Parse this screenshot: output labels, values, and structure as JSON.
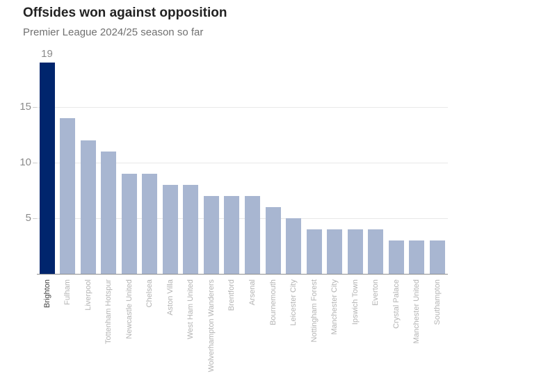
{
  "header": {
    "title": "Offsides won against opposition",
    "subtitle": "Premier League 2024/25 season so far"
  },
  "chart_data": {
    "type": "bar",
    "title": "Offsides won against opposition",
    "subtitle": "Premier League 2024/25 season so far",
    "categories": [
      "Brighton",
      "Fulham",
      "Liverpool",
      "Tottenham Hotspur",
      "Newcastle United",
      "Chelsea",
      "Aston Villa",
      "West Ham United",
      "Wolverhampton Wanderers",
      "Brentford",
      "Arsenal",
      "Bournemouth",
      "Leicester City",
      "Nottingham Forest",
      "Manchester City",
      "Ipswich Town",
      "Everton",
      "Crystal Palace",
      "Manchester United",
      "Southampton"
    ],
    "values": [
      19,
      14,
      12,
      11,
      9,
      9,
      8,
      8,
      7,
      7,
      7,
      6,
      5,
      4,
      4,
      4,
      4,
      3,
      3,
      3
    ],
    "highlight_index": 0,
    "annotations": [
      {
        "index": 0,
        "text": "19"
      }
    ],
    "y_ticks": [
      5,
      10,
      15
    ],
    "ylim": [
      0,
      20
    ],
    "grid": true,
    "legend": false,
    "xlabel": "",
    "ylabel": "",
    "colors": {
      "highlight_bar": "#00256d",
      "bar": "#a8b6d1",
      "gridline": "#e8e8e8",
      "axis_line": "#8e8e8e",
      "tick_mark": "#cccccc",
      "y_tick_label": "#8a8a8a",
      "value_label": "#8a8a8a",
      "x_label": "#b4b4b4",
      "x_label_highlight": "#3f3f3f"
    }
  }
}
